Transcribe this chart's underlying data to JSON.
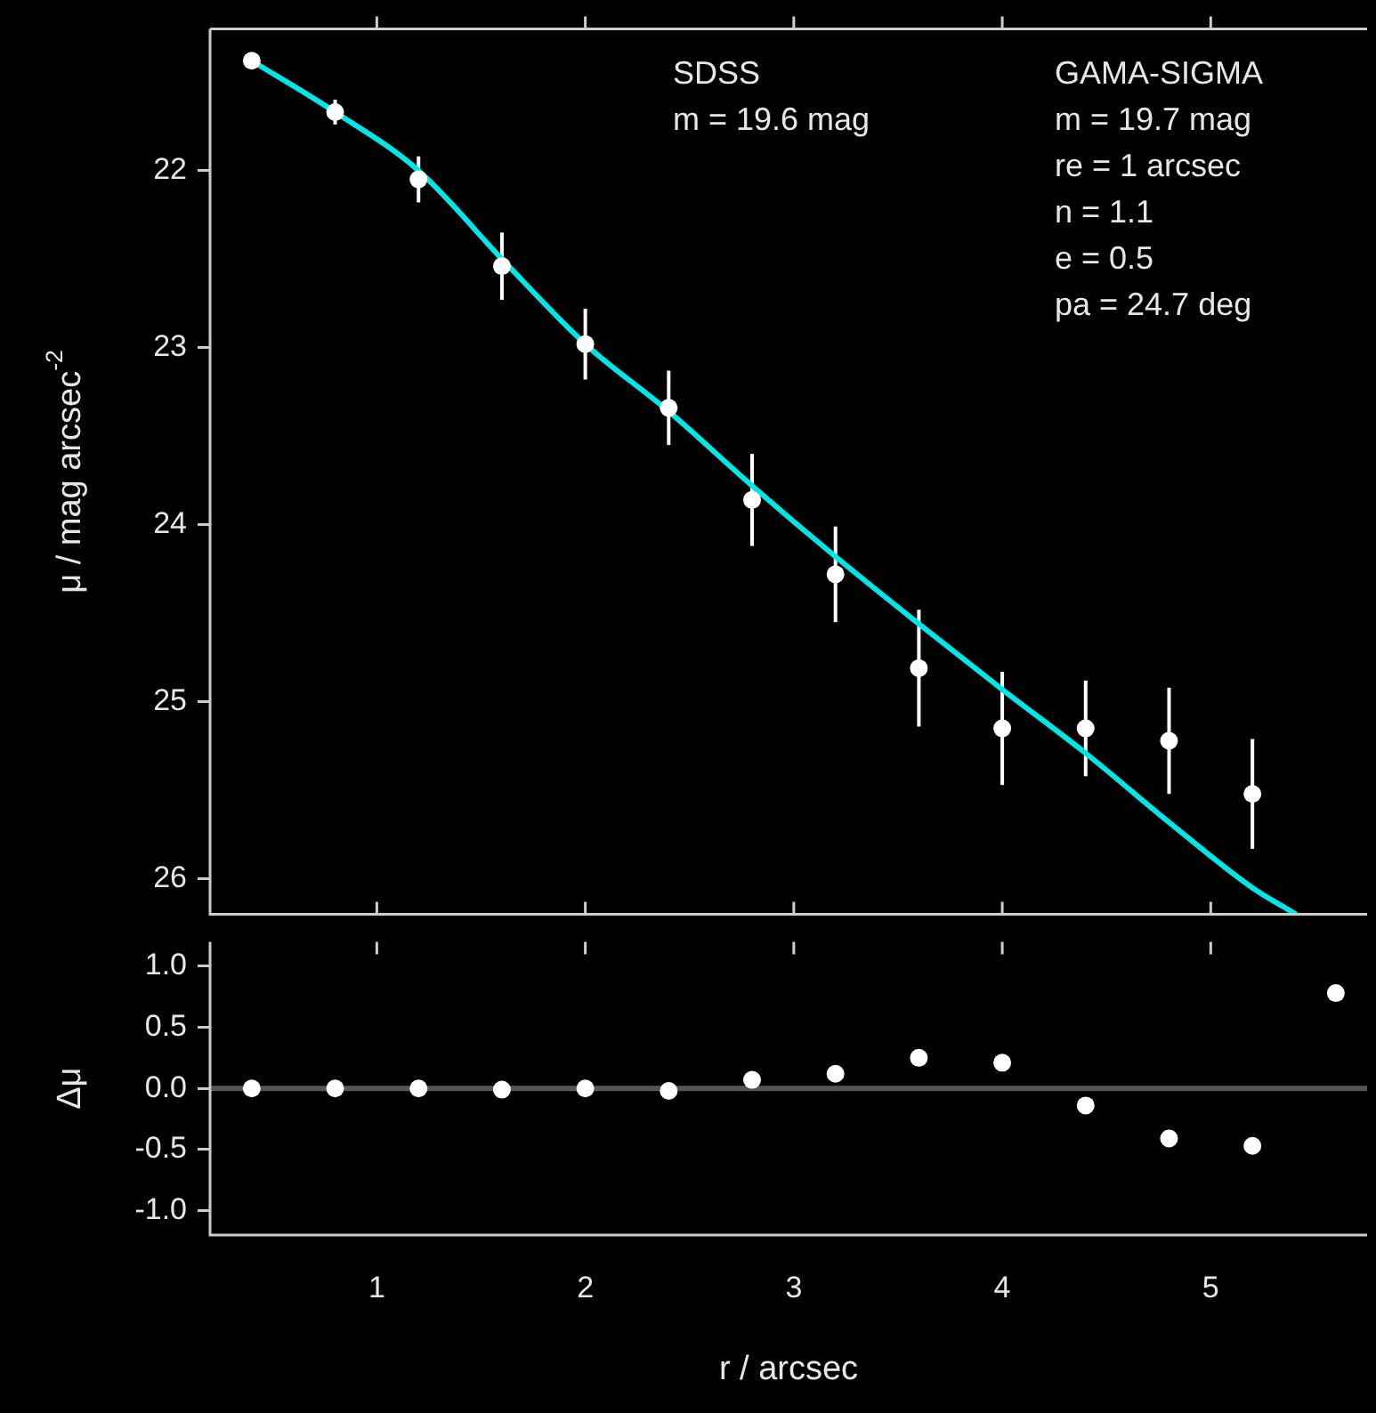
{
  "chart_data": [
    {
      "type": "scatter",
      "ylabel": "μ / mag arcsec$^{-2}$",
      "annotations": [
        "SDSS\nm = 19.6 mag",
        "GAMA-SIGMA\nm = 19.7 mag\nre = 1 arcsec\nn = 1.1\ne = 0.5\npa = 24.7 deg"
      ],
      "xlim": [
        0.2,
        5.75
      ],
      "xticks": [
        1,
        2,
        3,
        4,
        5
      ],
      "ylim": [
        26.2,
        21.2
      ],
      "yticks": [
        22,
        23,
        24,
        25,
        26
      ],
      "tick_labels": "y",
      "series": [
        {
          "type": "scatter",
          "marker": "circle",
          "color": "#ffffff",
          "x": [
            0.4,
            0.8,
            1.2,
            1.6,
            2.0,
            2.4,
            2.8,
            3.2,
            3.6,
            4.0,
            4.4,
            4.8,
            5.2
          ],
          "values": [
            21.38,
            21.67,
            22.05,
            22.54,
            22.98,
            23.34,
            23.86,
            24.28,
            24.81,
            25.15,
            25.15,
            25.22,
            25.52
          ],
          "errors": [
            null,
            0.07,
            0.13,
            0.19,
            0.2,
            0.21,
            0.26,
            0.27,
            0.33,
            0.32,
            0.27,
            0.3,
            0.31
          ]
        },
        {
          "type": "line",
          "marker": "none",
          "color": "#00e5e5",
          "x": [
            0.4,
            0.8,
            1.2,
            1.6,
            2.0,
            2.4,
            2.8,
            3.2,
            3.6,
            4.0,
            4.4,
            4.8,
            5.2,
            5.41
          ],
          "values": [
            21.38,
            21.67,
            22.0,
            22.5,
            22.98,
            23.36,
            23.78,
            24.18,
            24.56,
            24.93,
            25.29,
            25.68,
            26.05,
            26.2
          ]
        }
      ]
    },
    {
      "type": "scatter",
      "xlabel": "r / arcsec",
      "ylabel": "Δμ",
      "marker": "circle",
      "color": "#ffffff",
      "x": [
        0.4,
        0.8,
        1.2,
        1.6,
        2.0,
        2.4,
        2.8,
        3.2,
        3.6,
        4.0,
        4.4,
        4.8,
        5.2,
        5.6
      ],
      "values": [
        0.0,
        0.0,
        0.0,
        -0.01,
        0.0,
        -0.02,
        0.07,
        0.12,
        0.25,
        0.21,
        -0.14,
        -0.41,
        -0.47,
        0.78
      ],
      "xlim": [
        0.2,
        5.75
      ],
      "xticks": [
        1,
        2,
        3,
        4,
        5
      ],
      "ylim": [
        -1.2,
        1.2
      ],
      "yticks": [
        {
          "value": 1,
          "label": "1.0"
        },
        {
          "value": 0.5,
          "label": "0.5"
        },
        {
          "value": 0,
          "label": "0.0"
        },
        {
          "value": -0.5,
          "label": "-0.5"
        },
        {
          "value": -1,
          "label": "-1.0"
        }
      ],
      "ref_lines": [
        {
          "axis": "y",
          "value": 0,
          "color": "#555555"
        }
      ]
    }
  ]
}
